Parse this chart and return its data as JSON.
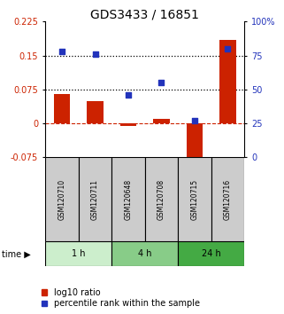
{
  "title": "GDS3433 / 16851",
  "samples": [
    "GSM120710",
    "GSM120711",
    "GSM120648",
    "GSM120708",
    "GSM120715",
    "GSM120716"
  ],
  "log10_ratio": [
    0.065,
    0.05,
    -0.005,
    0.01,
    -0.1,
    0.185
  ],
  "percentile_rank": [
    78,
    76,
    46,
    55,
    27,
    80
  ],
  "ylim_left": [
    -0.075,
    0.225
  ],
  "ylim_right": [
    0,
    100
  ],
  "yticks_left": [
    -0.075,
    0,
    0.075,
    0.15,
    0.225
  ],
  "ytick_labels_left": [
    "-0.075",
    "0",
    "0.075",
    "0.15",
    "0.225"
  ],
  "yticks_right": [
    0,
    25,
    50,
    75,
    100
  ],
  "ytick_labels_right": [
    "0",
    "25",
    "50",
    "75",
    "100%"
  ],
  "hlines_dotted": [
    0.075,
    0.15
  ],
  "hline_dashed": 0,
  "bar_color": "#cc2200",
  "dot_color": "#2233bb",
  "bar_width": 0.5,
  "time_groups": [
    {
      "label": "1 h",
      "color": "#cceecc",
      "start": 0,
      "end": 2
    },
    {
      "label": "4 h",
      "color": "#88cc88",
      "start": 2,
      "end": 4
    },
    {
      "label": "24 h",
      "color": "#44aa44",
      "start": 4,
      "end": 6
    }
  ],
  "legend_red": "log10 ratio",
  "legend_blue": "percentile rank within the sample",
  "time_label": "time",
  "background_sample_box": "#cccccc",
  "title_fontsize": 10,
  "tick_fontsize": 7,
  "sample_fontsize": 5.5,
  "time_fontsize": 7,
  "legend_fontsize": 7
}
